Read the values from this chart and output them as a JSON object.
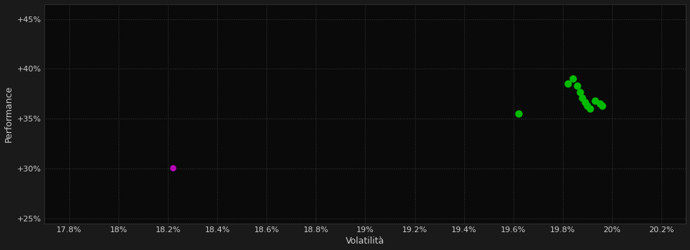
{
  "background_color": "#1a1a1a",
  "plot_bg_color": "#0a0a0a",
  "grid_color": "#3a3a3a",
  "text_color": "#cccccc",
  "xlabel": "Volatilità",
  "ylabel": "Performance",
  "xlim": [
    17.7,
    20.3
  ],
  "ylim": [
    24.5,
    46.5
  ],
  "xticks": [
    17.8,
    18.0,
    18.2,
    18.4,
    18.6,
    18.8,
    19.0,
    19.2,
    19.4,
    19.6,
    19.8,
    20.0,
    20.2
  ],
  "yticks": [
    25.0,
    30.0,
    35.0,
    40.0,
    45.0
  ],
  "green_points": [
    [
      19.62,
      35.5
    ],
    [
      19.82,
      38.55
    ],
    [
      19.84,
      39.0
    ],
    [
      19.86,
      38.3
    ],
    [
      19.87,
      37.7
    ],
    [
      19.88,
      37.1
    ],
    [
      19.89,
      36.7
    ],
    [
      19.9,
      36.3
    ],
    [
      19.91,
      36.0
    ],
    [
      19.93,
      36.8
    ],
    [
      19.95,
      36.5
    ],
    [
      19.96,
      36.3
    ]
  ],
  "magenta_points": [
    [
      18.22,
      30.1
    ]
  ],
  "green_color": "#00bb00",
  "magenta_color": "#bb00bb",
  "marker_size": 55
}
